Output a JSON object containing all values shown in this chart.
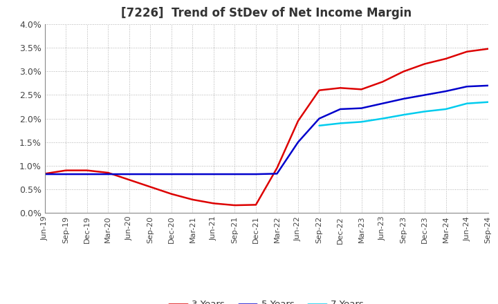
{
  "title": "[7226]  Trend of StDev of Net Income Margin",
  "background_color": "#ffffff",
  "plot_background_color": "#ffffff",
  "grid_color": "#b0b0b0",
  "x_labels": [
    "Jun-19",
    "Sep-19",
    "Dec-19",
    "Mar-20",
    "Jun-20",
    "Sep-20",
    "Dec-20",
    "Mar-21",
    "Jun-21",
    "Sep-21",
    "Dec-21",
    "Mar-22",
    "Jun-22",
    "Sep-22",
    "Dec-22",
    "Mar-23",
    "Jun-23",
    "Sep-23",
    "Dec-23",
    "Mar-24",
    "Jun-24",
    "Sep-24"
  ],
  "series": {
    "3 Years": {
      "color": "#dd0000",
      "values": [
        0.0083,
        0.009,
        0.009,
        0.0085,
        0.007,
        0.0055,
        0.004,
        0.0028,
        0.002,
        0.0016,
        0.0017,
        0.0095,
        0.0195,
        0.026,
        0.0265,
        0.0262,
        0.0278,
        0.03,
        0.0316,
        0.0327,
        0.0342,
        0.0348
      ]
    },
    "5 Years": {
      "color": "#0000cc",
      "values": [
        0.0082,
        0.0082,
        0.0082,
        0.0082,
        0.0082,
        0.0082,
        0.0082,
        0.0082,
        0.0082,
        0.0082,
        0.0082,
        0.0083,
        0.015,
        0.02,
        0.022,
        0.0222,
        0.0232,
        0.0242,
        0.025,
        0.0258,
        0.0268,
        0.027
      ]
    },
    "7 Years": {
      "color": "#00ccee",
      "values": [
        null,
        null,
        null,
        null,
        null,
        null,
        null,
        null,
        null,
        null,
        null,
        null,
        null,
        0.0185,
        0.019,
        0.0193,
        0.02,
        0.0208,
        0.0215,
        0.022,
        0.0232,
        0.0235
      ]
    },
    "10 Years": {
      "color": "#007700",
      "values": [
        null,
        null,
        null,
        null,
        null,
        null,
        null,
        null,
        null,
        null,
        null,
        null,
        null,
        null,
        null,
        null,
        null,
        null,
        null,
        null,
        null,
        null
      ]
    }
  },
  "ylim": [
    0.0,
    0.04
  ],
  "yticks": [
    0.0,
    0.005,
    0.01,
    0.015,
    0.02,
    0.025,
    0.03,
    0.035,
    0.04
  ],
  "ytick_labels": [
    "0.0%",
    "0.5%",
    "1.0%",
    "1.5%",
    "2.0%",
    "2.5%",
    "3.0%",
    "3.5%",
    "4.0%"
  ],
  "title_fontsize": 12,
  "tick_fontsize": 9
}
